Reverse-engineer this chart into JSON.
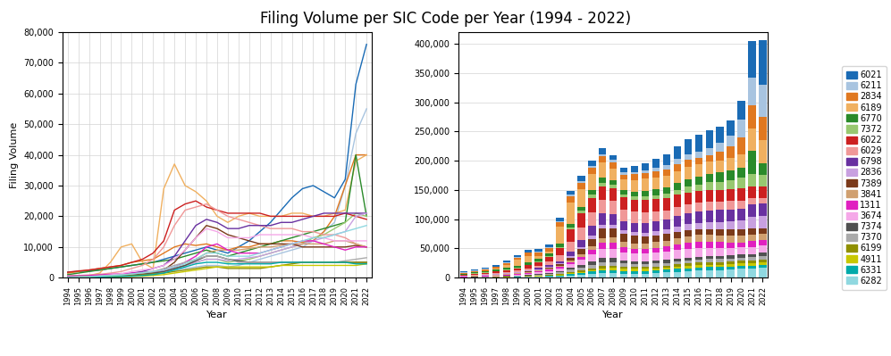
{
  "title": "Filing Volume per SIC Code per Year (1994 - 2022)",
  "years": [
    1994,
    1995,
    1996,
    1997,
    1998,
    1999,
    2000,
    2001,
    2002,
    2003,
    2004,
    2005,
    2006,
    2007,
    2008,
    2009,
    2010,
    2011,
    2012,
    2013,
    2014,
    2015,
    2016,
    2017,
    2018,
    2019,
    2020,
    2021,
    2022
  ],
  "sic_codes": [
    "6021",
    "6211",
    "2834",
    "6189",
    "6770",
    "7372",
    "6022",
    "6029",
    "6798",
    "2836",
    "7389",
    "3841",
    "1311",
    "3674",
    "7374",
    "7370",
    "6199",
    "4911",
    "6331",
    "6282"
  ],
  "colors": [
    "#1a6bb5",
    "#a8c4e0",
    "#e07820",
    "#f0b060",
    "#2a8a2a",
    "#98c870",
    "#cc2020",
    "#f09898",
    "#6830a0",
    "#c8a0e0",
    "#7b3a1a",
    "#d0a070",
    "#e020c0",
    "#f5a8e8",
    "#505050",
    "#aaaaaa",
    "#909000",
    "#c8c800",
    "#00aaaa",
    "#90d8e0"
  ],
  "data": {
    "6282": [
      100,
      200,
      300,
      500,
      700,
      900,
      1200,
      1600,
      2000,
      2500,
      3500,
      4500,
      6000,
      8000,
      8000,
      7000,
      7000,
      7000,
      8000,
      9000,
      10000,
      11000,
      12000,
      13000,
      13000,
      14000,
      15000,
      16000,
      17000
    ],
    "6331": [
      100,
      150,
      200,
      250,
      300,
      400,
      500,
      700,
      1000,
      1500,
      2500,
      3500,
      4500,
      5000,
      5000,
      4500,
      4500,
      4500,
      4500,
      4500,
      5000,
      5000,
      5000,
      5000,
      5000,
      5000,
      5000,
      4500,
      4500
    ],
    "4911": [
      100,
      150,
      200,
      250,
      300,
      350,
      400,
      500,
      700,
      1000,
      1500,
      2000,
      2500,
      3000,
      3500,
      3500,
      3500,
      3500,
      3500,
      3500,
      4000,
      4000,
      4000,
      4000,
      4000,
      4000,
      4000,
      4000,
      4500
    ],
    "6199": [
      100,
      150,
      200,
      300,
      400,
      500,
      700,
      900,
      1200,
      1500,
      2000,
      2500,
      3000,
      3500,
      3500,
      3000,
      3000,
      3000,
      3000,
      3500,
      4000,
      4500,
      5000,
      5000,
      5000,
      5000,
      5000,
      5000,
      5000
    ],
    "7370": [
      200,
      300,
      400,
      500,
      700,
      900,
      1200,
      1600,
      2000,
      3000,
      4000,
      5000,
      6000,
      7000,
      7000,
      6000,
      5000,
      5000,
      5000,
      5000,
      5000,
      5000,
      5000,
      5000,
      5000,
      5000,
      5500,
      6000,
      6500
    ],
    "7374": [
      200,
      300,
      400,
      500,
      600,
      700,
      900,
      1100,
      1500,
      2000,
      3000,
      4000,
      5500,
      7000,
      7000,
      6000,
      5500,
      5000,
      5000,
      5000,
      5000,
      5000,
      5000,
      5000,
      5000,
      5000,
      5000,
      5000,
      5000
    ],
    "3674": [
      200,
      300,
      400,
      600,
      900,
      1300,
      2000,
      2500,
      3000,
      4000,
      6000,
      9000,
      13000,
      16000,
      15000,
      13000,
      13000,
      13000,
      14000,
      14000,
      14000,
      14000,
      14000,
      13000,
      13000,
      12000,
      12000,
      12000,
      12000
    ],
    "1311": [
      500,
      600,
      700,
      900,
      1100,
      1300,
      1500,
      1700,
      2000,
      2500,
      3500,
      5000,
      7000,
      10000,
      11000,
      9000,
      8000,
      8000,
      8000,
      9000,
      10000,
      11000,
      12000,
      12000,
      11000,
      10000,
      9000,
      10000,
      10000
    ],
    "3841": [
      500,
      600,
      700,
      800,
      900,
      1000,
      1200,
      1400,
      1600,
      2000,
      3000,
      4000,
      6000,
      8000,
      9000,
      9000,
      9000,
      9500,
      10000,
      10000,
      10500,
      11000,
      11000,
      11000,
      11000,
      12000,
      12000,
      11000,
      10000
    ],
    "7389": [
      300,
      400,
      500,
      600,
      700,
      800,
      1000,
      1200,
      1500,
      2500,
      5000,
      9000,
      13000,
      17000,
      16000,
      14000,
      13000,
      12000,
      11000,
      11000,
      11000,
      11000,
      10000,
      10000,
      10000,
      10000,
      10000,
      10500,
      10000
    ],
    "2836": [
      500,
      600,
      700,
      800,
      900,
      1000,
      1200,
      1400,
      1600,
      2000,
      3000,
      4000,
      5000,
      6000,
      6000,
      5500,
      6000,
      6500,
      7000,
      8000,
      9000,
      10000,
      11000,
      12000,
      13000,
      14000,
      15000,
      20000,
      21000
    ],
    "6798": [
      200,
      300,
      400,
      500,
      700,
      900,
      1500,
      2000,
      3000,
      4000,
      7000,
      12000,
      17000,
      19000,
      18000,
      16000,
      16000,
      17000,
      17000,
      17000,
      18000,
      18000,
      19000,
      20000,
      21000,
      21000,
      21000,
      21000,
      21000
    ],
    "6029": [
      500,
      700,
      900,
      1100,
      1500,
      2000,
      3000,
      4000,
      6000,
      10000,
      17000,
      22000,
      23000,
      24000,
      22000,
      20000,
      19000,
      18000,
      17000,
      16000,
      16000,
      16000,
      15000,
      15000,
      14000,
      14000,
      13000,
      11000,
      10000
    ],
    "6022": [
      1800,
      2200,
      2500,
      3000,
      3500,
      4000,
      5000,
      6000,
      8000,
      12000,
      22000,
      24000,
      25000,
      23000,
      22000,
      21000,
      21000,
      21000,
      21000,
      20000,
      20000,
      20000,
      20000,
      20000,
      20000,
      20000,
      21000,
      20000,
      19000
    ],
    "7372": [
      300,
      400,
      500,
      600,
      700,
      800,
      1000,
      1200,
      1500,
      2000,
      3000,
      4000,
      5000,
      6000,
      6000,
      5000,
      5500,
      6000,
      7000,
      8000,
      9000,
      10000,
      11000,
      13000,
      14000,
      16000,
      18000,
      21000,
      20000
    ],
    "6770": [
      1000,
      1500,
      2000,
      2500,
      3000,
      3500,
      4000,
      4500,
      5000,
      5500,
      6000,
      7000,
      8000,
      9000,
      8000,
      7000,
      8000,
      9000,
      10000,
      11000,
      12000,
      13000,
      14000,
      15000,
      16000,
      17000,
      18000,
      40000,
      20000
    ],
    "6189": [
      200,
      400,
      700,
      1500,
      5000,
      10000,
      11000,
      5000,
      3000,
      29000,
      37000,
      30000,
      28000,
      25000,
      20000,
      18000,
      20000,
      21000,
      20000,
      20000,
      20000,
      21000,
      21000,
      20000,
      20000,
      21000,
      22000,
      38000,
      40000
    ],
    "2834": [
      1500,
      2000,
      2500,
      3000,
      3500,
      4000,
      5000,
      5500,
      6000,
      8000,
      10000,
      11000,
      10500,
      11000,
      10000,
      9000,
      10000,
      10000,
      11000,
      11000,
      12000,
      12000,
      11500,
      12000,
      15000,
      20000,
      30000,
      40000,
      40000
    ],
    "6211": [
      500,
      600,
      700,
      800,
      900,
      1000,
      1200,
      1400,
      1600,
      2000,
      2500,
      3000,
      3500,
      4000,
      4000,
      3500,
      4000,
      5000,
      6000,
      7000,
      8000,
      9000,
      10000,
      12000,
      15000,
      18000,
      30000,
      47000,
      55000
    ],
    "6021": [
      1800,
      2000,
      2200,
      2500,
      3000,
      3500,
      4000,
      4500,
      5000,
      6000,
      7000,
      8000,
      9000,
      10000,
      9000,
      8000,
      10000,
      12000,
      15000,
      18000,
      22000,
      26000,
      29000,
      30000,
      28000,
      26000,
      32000,
      63000,
      76000
    ]
  },
  "legend_order": [
    "6021",
    "6211",
    "2834",
    "6189",
    "6770",
    "7372",
    "6022",
    "6029",
    "6798",
    "2836",
    "7389",
    "3841",
    "1311",
    "3674",
    "7374",
    "7370",
    "6199",
    "4911",
    "6331",
    "6282"
  ],
  "legend_colors": [
    "#1a6bb5",
    "#a8c4e0",
    "#e07820",
    "#f0b060",
    "#2a8a2a",
    "#98c870",
    "#cc2020",
    "#f09898",
    "#6830a0",
    "#c8a0e0",
    "#7b3a1a",
    "#d0a070",
    "#e020c0",
    "#f5a8e8",
    "#505050",
    "#aaaaaa",
    "#909000",
    "#c8c800",
    "#00aaaa",
    "#90d8e0"
  ]
}
